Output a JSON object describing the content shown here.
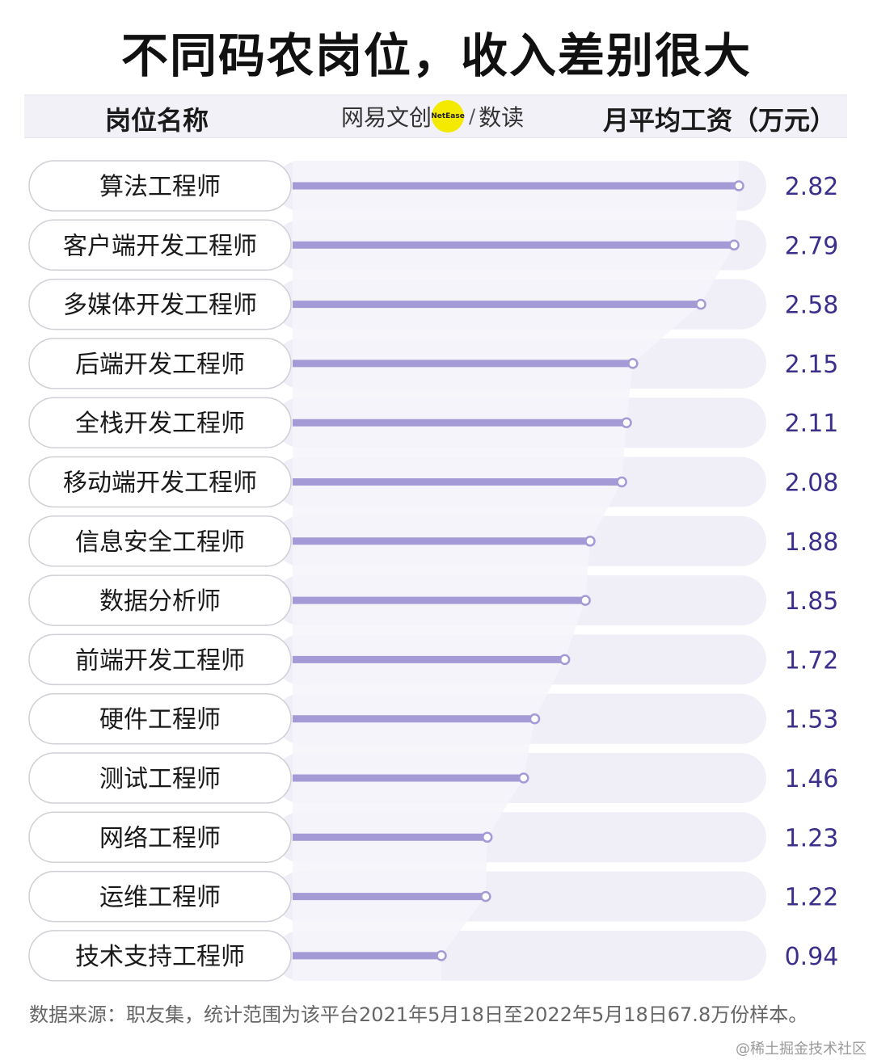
{
  "title": "不同码农岗位，收入差别很大",
  "header": {
    "left_label": "岗位名称",
    "right_label": "月平均工资（万元）",
    "logo_text_1": "网易文创",
    "logo_badge": "NetEase",
    "logo_sep": "/",
    "logo_text_2": "数读"
  },
  "colors": {
    "bar": "#a39ad6",
    "value_text": "#3b2f8c",
    "row_bg": "#f0eff8",
    "pill_border": "#cfcfd6",
    "shade": "#f5f5fa"
  },
  "chart_data": {
    "type": "bar",
    "orientation": "horizontal",
    "categories": [
      "算法工程师",
      "客户端开发工程师",
      "多媒体开发工程师",
      "后端开发工程师",
      "全栈开发工程师",
      "移动端开发工程师",
      "信息安全工程师",
      "数据分析师",
      "前端开发工程师",
      "硬件工程师",
      "测试工程师",
      "网络工程师",
      "运维工程师",
      "技术支持工程师"
    ],
    "values": [
      2.82,
      2.79,
      2.58,
      2.15,
      2.11,
      2.08,
      1.88,
      1.85,
      1.72,
      1.53,
      1.46,
      1.23,
      1.22,
      0.94
    ],
    "value_labels": [
      "2.82",
      "2.79",
      "2.58",
      "2.15",
      "2.11",
      "2.08",
      "1.88",
      "1.85",
      "1.72",
      "1.53",
      "1.46",
      "1.23",
      "1.22",
      "0.94"
    ],
    "xlim": [
      0,
      2.82
    ]
  },
  "footer": "数据来源：职友集，统计范围为该平台2021年5月18日至2022年5月18日67.8万份样本。",
  "watermark": "@稀土掘金技术社区"
}
